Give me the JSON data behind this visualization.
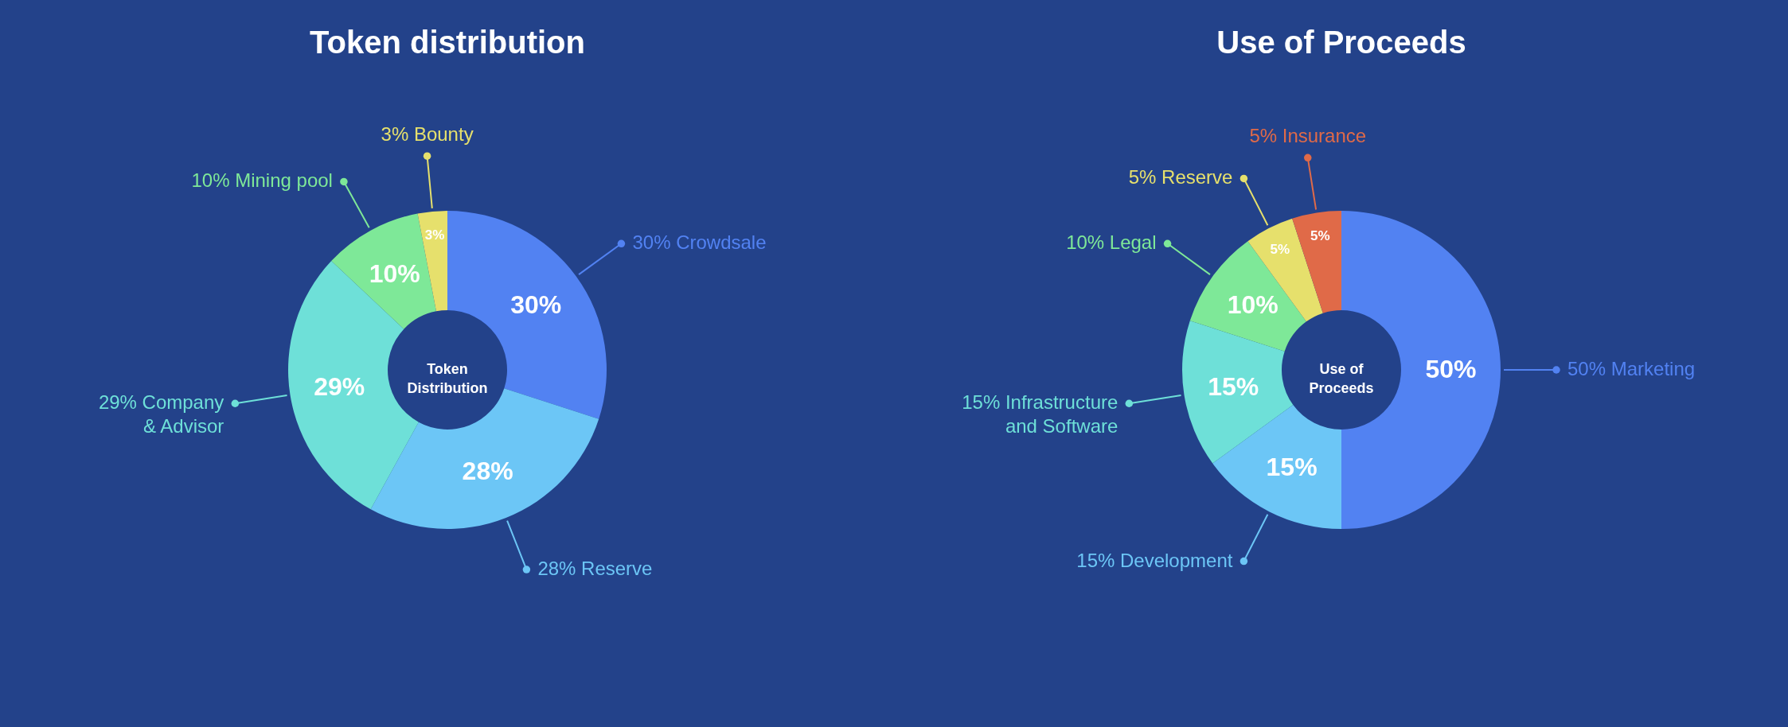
{
  "chart_data": [
    {
      "type": "donut",
      "title": "Token distribution",
      "categories": [
        "Crowdsale",
        "Reserve",
        "Company & Advisor",
        "Mining pool",
        "Bounty"
      ],
      "values": [
        30,
        28,
        29,
        10,
        3
      ],
      "value_labels": [
        "30%",
        "28%",
        "29%",
        "10%",
        "3%"
      ],
      "colors": [
        "#5282f2",
        "#6cc6f6",
        "#6ee0d8",
        "#7ee898",
        "#e6e06c"
      ],
      "legend": "right",
      "annotations": [
        "Token Distribution"
      ]
    },
    {
      "type": "donut",
      "title": "Use of Proceeds",
      "categories": [
        "Marketing",
        "Development",
        "Infrastructure and Software",
        "Legal",
        "Reserve",
        "Insurance"
      ],
      "values": [
        50,
        15,
        15,
        10,
        5,
        5
      ],
      "value_labels": [
        "50%",
        "15%",
        "15%",
        "10%",
        "5%",
        "5%"
      ],
      "colors": [
        "#5282f2",
        "#6cc6f6",
        "#6ee0d8",
        "#7ee898",
        "#e6e06c",
        "#e06a48"
      ],
      "legend": "left",
      "annotations": [
        "Use of Proceeds"
      ]
    }
  ]
}
